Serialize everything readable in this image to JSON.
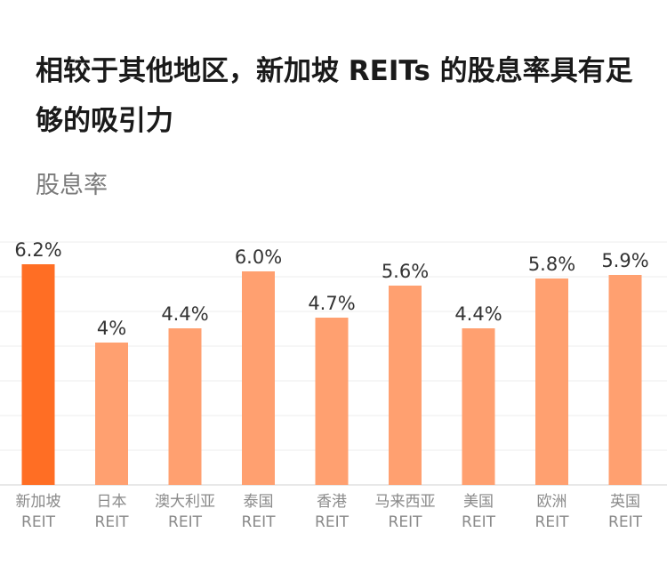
{
  "header": {
    "title": "相较于其他地区，新加坡 REITs 的股息率具有足够的吸引力",
    "subtitle": "股息率"
  },
  "colors": {
    "highlight": "#FF6E24",
    "bar": "#FFA070",
    "grid": "#EEEEEE",
    "axis": "#D0D0D0"
  },
  "chart_data": {
    "type": "bar",
    "categories": [
      "新加坡 REIT",
      "日本 REIT",
      "澳大利亚 REIT",
      "泰国 REIT",
      "香港 REIT",
      "马来西亚 REIT",
      "美国 REIT",
      "欧洲 REIT",
      "英国 REIT"
    ],
    "category_lines": [
      [
        "新加坡",
        "REIT"
      ],
      [
        "日本",
        "REIT"
      ],
      [
        "澳大利亚",
        "REIT"
      ],
      [
        "泰国",
        "REIT"
      ],
      [
        "香港",
        "REIT"
      ],
      [
        "马来西亚",
        "REIT"
      ],
      [
        "美国",
        "REIT"
      ],
      [
        "欧洲",
        "REIT"
      ],
      [
        "英国",
        "REIT"
      ]
    ],
    "values": [
      6.2,
      4.0,
      4.4,
      6.0,
      4.7,
      5.6,
      4.4,
      5.8,
      5.9
    ],
    "value_labels": [
      "6.2%",
      "4%",
      "4.4%",
      "6.0%",
      "4.7%",
      "5.6%",
      "4.4%",
      "5.8%",
      "5.9%"
    ],
    "highlight_index": 0,
    "ylabel": "股息率",
    "ylim": [
      0,
      6.5
    ],
    "grid": true,
    "legend": "none"
  }
}
